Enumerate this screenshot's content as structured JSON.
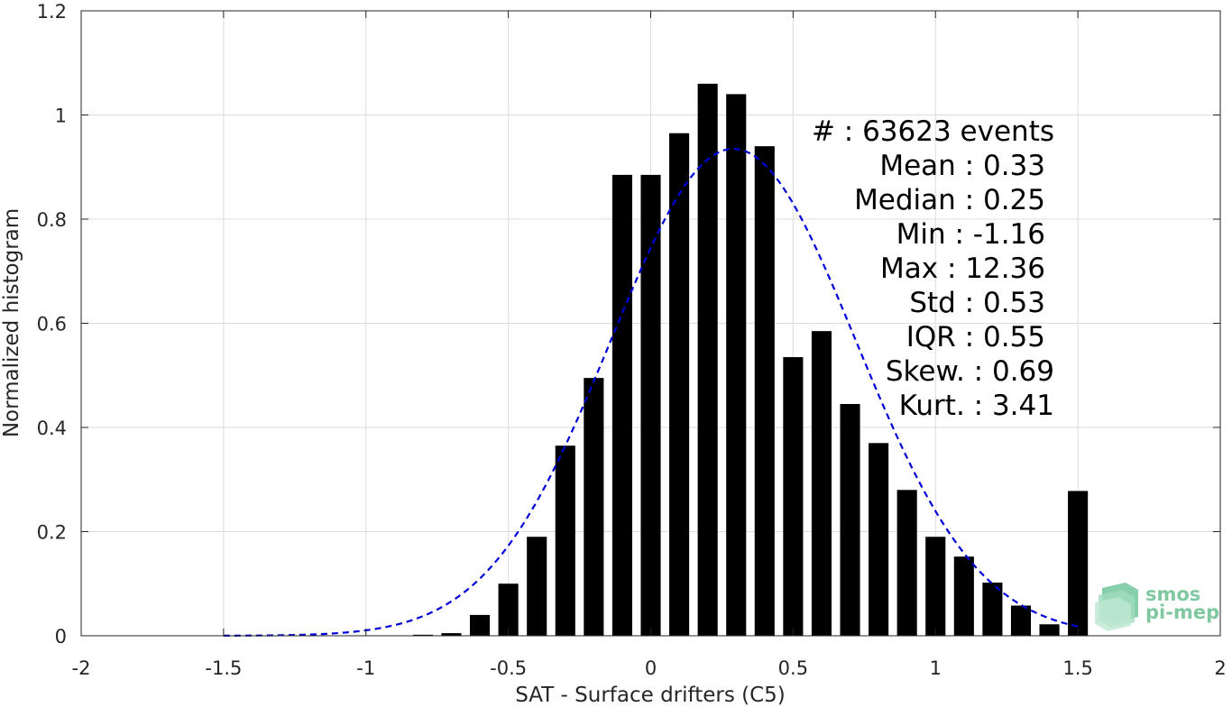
{
  "chart_data": {
    "type": "bar",
    "xlabel": "SAT - Surface drifters (C5)",
    "ylabel": "Normalized histogram",
    "xlim": [
      -2,
      2
    ],
    "ylim": [
      0,
      1.2
    ],
    "xticks": [
      "-2",
      "-1.5",
      "-1",
      "-0.5",
      "0",
      "0.5",
      "1",
      "1.5",
      "2"
    ],
    "xtick_values": [
      -2,
      -1.5,
      -1,
      -0.5,
      0,
      0.5,
      1,
      1.5,
      2
    ],
    "yticks": [
      "0",
      "0.2",
      "0.4",
      "0.6",
      "0.8",
      "1",
      "1.2"
    ],
    "ytick_values": [
      0,
      0.2,
      0.4,
      0.6,
      0.8,
      1.0,
      1.2
    ],
    "grid": true,
    "bar_color": "#000000",
    "bin_width": 0.1,
    "series": [
      {
        "x": [
          -0.8,
          -0.7,
          -0.6,
          -0.5,
          -0.4,
          -0.3,
          -0.2,
          -0.1,
          0.0,
          0.1,
          0.2,
          0.3,
          0.4,
          0.5,
          0.6,
          0.7,
          0.8,
          0.9,
          1.0,
          1.1,
          1.2,
          1.3,
          1.4,
          1.5
        ],
        "values": [
          0.002,
          0.005,
          0.04,
          0.1,
          0.19,
          0.365,
          0.495,
          0.885,
          0.885,
          0.965,
          1.06,
          1.04,
          0.94,
          0.535,
          0.585,
          0.445,
          0.37,
          0.28,
          0.19,
          0.152,
          0.102,
          0.058,
          0.022,
          0.278
        ]
      }
    ],
    "fit_curve": {
      "style": "dashed",
      "color": "#0000d9",
      "distribution": "gaussian",
      "mean": 0.29,
      "std": 0.43,
      "peak": 0.935,
      "x_range": [
        -1.5,
        1.5
      ]
    },
    "stats": [
      "#  : 63623 events",
      "Mean : 0.33",
      "Median : 0.25",
      "Min : -1.16",
      "Max : 12.36",
      "Std : 0.53",
      "IQR : 0.55",
      "Skew. : 0.69",
      "Kurt. : 3.41"
    ]
  },
  "logo": {
    "line1": "smos",
    "line2": "pi-mep",
    "color": "#7fc8a0"
  }
}
